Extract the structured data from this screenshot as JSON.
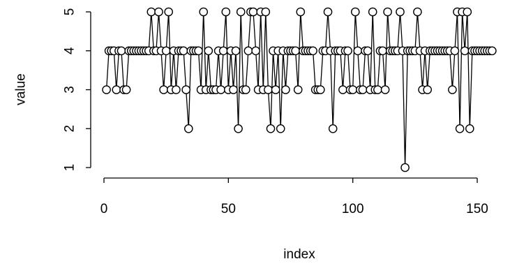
{
  "chart_data": {
    "type": "scatter",
    "title": "",
    "xlabel": "index",
    "ylabel": "value",
    "xlim": [
      0,
      157
    ],
    "ylim": [
      1,
      5
    ],
    "x_ticks": [
      0,
      50,
      100,
      150
    ],
    "x_tick_labels": [
      "0",
      "50",
      "100",
      "150"
    ],
    "y_ticks": [
      1,
      2,
      3,
      4,
      5
    ],
    "y_tick_labels": [
      "1",
      "2",
      "3",
      "4",
      "5"
    ],
    "grid": false,
    "marker": "open-circle",
    "connected_by_lines": true,
    "x": [
      1,
      2,
      3,
      4,
      5,
      6,
      7,
      8,
      9,
      10,
      11,
      12,
      13,
      14,
      15,
      16,
      17,
      18,
      19,
      20,
      21,
      22,
      23,
      24,
      25,
      26,
      27,
      28,
      29,
      30,
      31,
      32,
      33,
      34,
      35,
      36,
      37,
      38,
      39,
      40,
      41,
      42,
      43,
      44,
      45,
      46,
      47,
      48,
      49,
      50,
      51,
      52,
      53,
      54,
      55,
      56,
      57,
      58,
      59,
      60,
      61,
      62,
      63,
      64,
      65,
      66,
      67,
      68,
      69,
      70,
      71,
      72,
      73,
      74,
      75,
      76,
      77,
      78,
      79,
      80,
      81,
      82,
      83,
      84,
      85,
      86,
      87,
      88,
      89,
      90,
      91,
      92,
      93,
      94,
      95,
      96,
      97,
      98,
      99,
      100,
      101,
      102,
      103,
      104,
      105,
      106,
      107,
      108,
      109,
      110,
      111,
      112,
      113,
      114,
      115,
      116,
      117,
      118,
      119,
      120,
      121,
      122,
      123,
      124,
      125,
      126,
      127,
      128,
      129,
      130,
      131,
      132,
      133,
      134,
      135,
      136,
      137,
      138,
      139,
      140,
      141,
      142,
      143,
      144,
      145,
      146,
      147,
      148,
      149,
      150,
      151,
      152,
      153,
      154,
      155,
      156
    ],
    "y": [
      3,
      4,
      4,
      4,
      3,
      4,
      4,
      3,
      3,
      4,
      4,
      4,
      4,
      4,
      4,
      4,
      4,
      4,
      5,
      4,
      4,
      5,
      4,
      3,
      4,
      5,
      3,
      4,
      3,
      4,
      4,
      4,
      3,
      2,
      4,
      4,
      4,
      4,
      3,
      5,
      3,
      4,
      3,
      3,
      3,
      4,
      3,
      4,
      5,
      3,
      4,
      3,
      4,
      2,
      5,
      3,
      3,
      4,
      5,
      5,
      4,
      3,
      5,
      3,
      5,
      3,
      2,
      4,
      3,
      4,
      2,
      4,
      3,
      4,
      4,
      4,
      4,
      3,
      5,
      4,
      4,
      4,
      4,
      4,
      3,
      3,
      3,
      4,
      4,
      5,
      4,
      2,
      4,
      4,
      4,
      3,
      4,
      4,
      3,
      3,
      5,
      4,
      3,
      3,
      4,
      4,
      3,
      5,
      3,
      3,
      4,
      4,
      3,
      5,
      4,
      4,
      4,
      4,
      5,
      4,
      1,
      4,
      4,
      4,
      4,
      5,
      4,
      3,
      4,
      3,
      4,
      4,
      4,
      4,
      4,
      4,
      4,
      4,
      4,
      3,
      4,
      5,
      2,
      5,
      4,
      5,
      2,
      4,
      4,
      4,
      4,
      4,
      4,
      4,
      4,
      4
    ]
  }
}
